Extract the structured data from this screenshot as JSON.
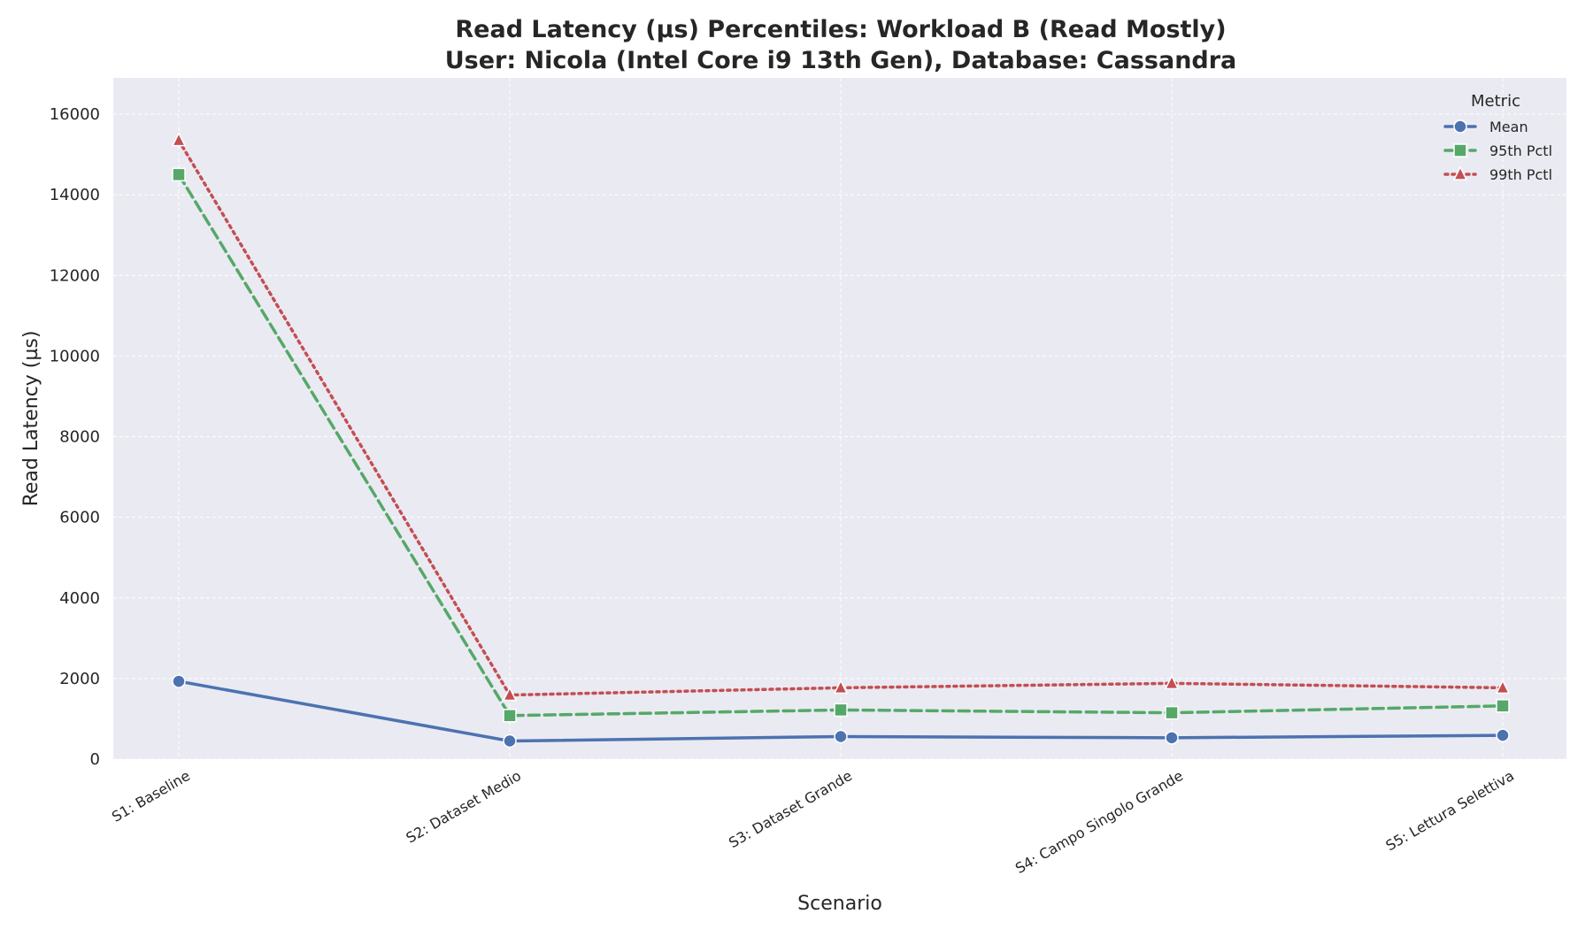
{
  "chart_data": {
    "type": "line",
    "title_line1": "Read Latency (µs) Percentiles: Workload B (Read Mostly)",
    "title_line2": "User: Nicola (Intel Core i9 13th Gen), Database: Cassandra",
    "xlabel": "Scenario",
    "ylabel": "Read Latency (µs)",
    "ylim": [
      0,
      16900
    ],
    "yticks": [
      0,
      2000,
      4000,
      6000,
      8000,
      10000,
      12000,
      14000,
      16000
    ],
    "grid": true,
    "legend_placement": "top-right",
    "legend_title": "Metric",
    "categories": [
      "S1: Baseline",
      "S2: Dataset Medio",
      "S3: Dataset Grande",
      "S4: Campo Singolo Grande",
      "S5: Lettura Selettiva"
    ],
    "series": [
      {
        "name": "Mean",
        "color": "#4c72b0",
        "marker": "circle",
        "linestyle": "solid",
        "values": [
          1930,
          450,
          560,
          530,
          590
        ]
      },
      {
        "name": "95th Pctl",
        "color": "#55a868",
        "marker": "square",
        "linestyle": "dashed",
        "values": [
          14500,
          1080,
          1220,
          1150,
          1320
        ]
      },
      {
        "name": "99th Pctl",
        "color": "#c44e52",
        "marker": "triangle",
        "linestyle": "dotted",
        "values": [
          15350,
          1590,
          1770,
          1880,
          1770
        ]
      }
    ]
  }
}
